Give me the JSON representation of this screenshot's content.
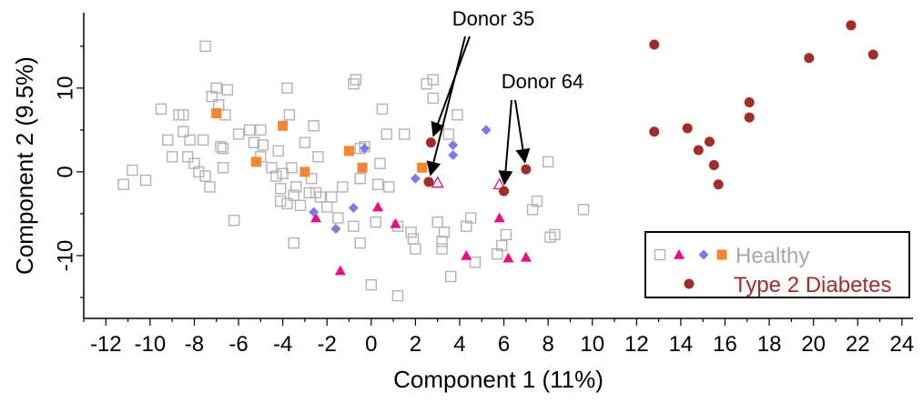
{
  "chart_data": {
    "type": "scatter",
    "title": "",
    "xlabel": "Component 1 (11%)",
    "ylabel": "Component 2 (9.5%)",
    "xlim": [
      -13,
      24.5
    ],
    "ylim": [
      -17.5,
      19
    ],
    "x_ticks": [
      -12,
      -10,
      -8,
      -6,
      -4,
      -2,
      0,
      2,
      4,
      6,
      8,
      10,
      12,
      14,
      16,
      18,
      20,
      22,
      24
    ],
    "y_ticks": [
      -10,
      0,
      10
    ],
    "grid": false,
    "colors": {
      "healthy_open_square": "#b3b3b3",
      "healthy_triangle": "#ee0a86",
      "healthy_diamond": "#7b7bef",
      "healthy_orange_square": "#f5852e",
      "t2d": "#a52a2a",
      "healthy_text": "#a8a8a8",
      "t2d_text": "#a52a2a"
    },
    "legend": {
      "position": "bottom-right",
      "entries": [
        {
          "label": "Healthy",
          "markers": [
            "open-square",
            "triangle",
            "diamond",
            "filled-square"
          ],
          "color_key": "healthy_text"
        },
        {
          "label": "Type 2 Diabetes",
          "markers": [
            "circle"
          ],
          "color_key": "t2d_text"
        }
      ]
    },
    "series": [
      {
        "marker": "open-square",
        "color_key": "healthy_open_square",
        "points": [
          [
            -7.5,
            15
          ],
          [
            -11.2,
            -1.5
          ],
          [
            -10.8,
            0.2
          ],
          [
            -10.2,
            -1
          ],
          [
            -9.5,
            7.5
          ],
          [
            -9.2,
            3.8
          ],
          [
            -9,
            1.8
          ],
          [
            -8.7,
            6.8
          ],
          [
            -8.5,
            6.8
          ],
          [
            -8.5,
            4.8
          ],
          [
            -8.3,
            1.8
          ],
          [
            -8.2,
            3.8
          ],
          [
            -8,
            1
          ],
          [
            -7.8,
            0
          ],
          [
            -7.6,
            3.8
          ],
          [
            -7.5,
            -0.5
          ],
          [
            -7.3,
            -1.8
          ],
          [
            -7.2,
            9
          ],
          [
            -7,
            10
          ],
          [
            -6.9,
            8
          ],
          [
            -6.8,
            3
          ],
          [
            -6.7,
            0.5
          ],
          [
            -6.7,
            2.8
          ],
          [
            -6.6,
            6.8
          ],
          [
            -6.5,
            9.8
          ],
          [
            -6.2,
            -5.8
          ],
          [
            -6,
            4.5
          ],
          [
            -5.5,
            5
          ],
          [
            -5.3,
            3.5
          ],
          [
            -5,
            5
          ],
          [
            -5,
            1.8
          ],
          [
            -4.9,
            3.2
          ],
          [
            -4.5,
            0.5
          ],
          [
            -4.3,
            -0.5
          ],
          [
            -4.2,
            2.5
          ],
          [
            -4.1,
            -2
          ],
          [
            -4.1,
            -3.5
          ],
          [
            -4,
            -0.2
          ],
          [
            -3.8,
            10
          ],
          [
            -3.8,
            -3.8
          ],
          [
            -3.7,
            6.8
          ],
          [
            -3.6,
            0.5
          ],
          [
            -3.5,
            -2.8
          ],
          [
            -3.5,
            -8.5
          ],
          [
            -3.4,
            -1.8
          ],
          [
            -3.2,
            -4
          ],
          [
            -3,
            3.5
          ],
          [
            -2.8,
            -2.5
          ],
          [
            -2.7,
            -0.8
          ],
          [
            -2.6,
            5.5
          ],
          [
            -2.5,
            -2.5
          ],
          [
            -2.4,
            1.8
          ],
          [
            -2.3,
            -3
          ],
          [
            -2,
            -4.2
          ],
          [
            -1.8,
            -3
          ],
          [
            -1.5,
            -5.5
          ],
          [
            -1.3,
            -1.8
          ],
          [
            -0.8,
            -6.5
          ],
          [
            -0.8,
            10.5
          ],
          [
            -0.7,
            11
          ],
          [
            -0.5,
            -0.8
          ],
          [
            -0.5,
            2.8
          ],
          [
            -0.5,
            -8.5
          ],
          [
            -0.3,
            3
          ],
          [
            0,
            -13.5
          ],
          [
            0.2,
            -6
          ],
          [
            0.3,
            -1.5
          ],
          [
            0.4,
            1
          ],
          [
            0.5,
            7.5
          ],
          [
            0.7,
            4.5
          ],
          [
            0.8,
            -1.8
          ],
          [
            1.2,
            -6.5
          ],
          [
            1.2,
            -14.8
          ],
          [
            1.5,
            4.5
          ],
          [
            1.8,
            -7.2
          ],
          [
            1.9,
            -8
          ],
          [
            2,
            -9.2
          ],
          [
            2.5,
            10.5
          ],
          [
            2.8,
            11
          ],
          [
            2.8,
            8.8
          ],
          [
            3,
            -6
          ],
          [
            3.2,
            -9.2
          ],
          [
            3.2,
            -8.3
          ],
          [
            3.3,
            -7.2
          ],
          [
            3.5,
            4.5
          ],
          [
            3.6,
            -12.5
          ],
          [
            3.9,
            6.8
          ],
          [
            4.3,
            -6.5
          ],
          [
            4.5,
            -5.5
          ],
          [
            4.7,
            -10.8
          ],
          [
            5.7,
            -9.8
          ],
          [
            5.9,
            -8.8
          ],
          [
            6.1,
            -7.5
          ],
          [
            7.3,
            -4.5
          ],
          [
            7.5,
            -3.5
          ],
          [
            8,
            1.2
          ],
          [
            8.1,
            -7.8
          ],
          [
            8.3,
            -7.5
          ],
          [
            9.6,
            -4.5
          ]
        ]
      },
      {
        "marker": "triangle",
        "color_key": "healthy_triangle",
        "points": [
          [
            -2.5,
            -5.5
          ],
          [
            -1.4,
            -11.8
          ],
          [
            0.3,
            -4.2
          ],
          [
            1.1,
            -6.2
          ],
          [
            4.3,
            -10
          ],
          [
            5.8,
            -5.5
          ],
          [
            6.2,
            -10.3
          ],
          [
            7,
            -10.2
          ]
        ]
      },
      {
        "marker": "open-triangle",
        "color_key": "healthy_triangle",
        "points": [
          [
            3,
            -1.3
          ],
          [
            5.8,
            -1.5
          ]
        ]
      },
      {
        "marker": "diamond",
        "color_key": "healthy_diamond",
        "points": [
          [
            -2.6,
            -4.8
          ],
          [
            -1.6,
            -6.8
          ],
          [
            -0.8,
            -4.3
          ],
          [
            -0.3,
            2.8
          ],
          [
            2,
            -0.8
          ],
          [
            3.7,
            3.2
          ],
          [
            3.7,
            2
          ],
          [
            5.2,
            5
          ]
        ]
      },
      {
        "marker": "filled-square",
        "color_key": "healthy_orange_square",
        "points": [
          [
            -7,
            7
          ],
          [
            -5.2,
            1.2
          ],
          [
            -4,
            5.5
          ],
          [
            -3,
            0
          ],
          [
            -1,
            2.5
          ],
          [
            -0.4,
            0.5
          ],
          [
            2.3,
            0.5
          ]
        ]
      },
      {
        "marker": "circle",
        "color_key": "t2d",
        "points": [
          [
            2.7,
            3.5
          ],
          [
            2.6,
            -1.2
          ],
          [
            6,
            -2.3
          ],
          [
            7,
            0.3
          ],
          [
            12.8,
            15.2
          ],
          [
            12.8,
            4.8
          ],
          [
            14.3,
            5.2
          ],
          [
            14.8,
            2.6
          ],
          [
            15.3,
            3.6
          ],
          [
            15.5,
            0.8
          ],
          [
            15.7,
            -1.5
          ],
          [
            17.1,
            8.3
          ],
          [
            17.1,
            6.5
          ],
          [
            19.8,
            13.6
          ],
          [
            21.7,
            17.5
          ],
          [
            22.7,
            14
          ]
        ]
      }
    ],
    "annotations": [
      {
        "text": "Donor 35",
        "arrows_to": [
          [
            2.7,
            3.5
          ],
          [
            2.6,
            -1.2
          ]
        ]
      },
      {
        "text": "Donor 64",
        "arrows_to": [
          [
            6,
            -2.3
          ],
          [
            7,
            0.3
          ]
        ]
      }
    ]
  }
}
